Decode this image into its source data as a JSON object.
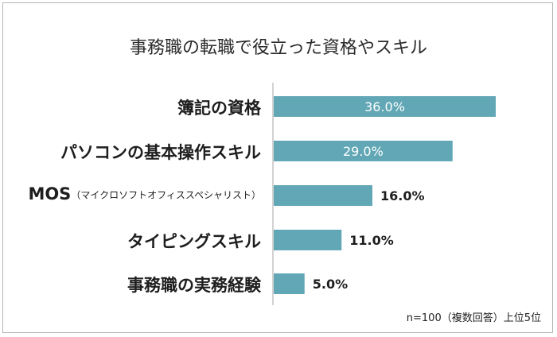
{
  "chart_data": {
    "type": "bar",
    "orientation": "horizontal",
    "title": "事務職の転職で役立った資格やスキル",
    "categories": [
      {
        "main": "簿記の資格",
        "sub": ""
      },
      {
        "main": "パソコンの基本操作スキル",
        "sub": ""
      },
      {
        "main": "MOS",
        "sub": "（マイクロソフトオフィススペシャリスト）"
      },
      {
        "main": "タイピングスキル",
        "sub": ""
      },
      {
        "main": "事務職の実務経験",
        "sub": ""
      }
    ],
    "values": [
      36.0,
      29.0,
      16.0,
      11.0,
      5.0
    ],
    "value_labels": [
      "36.0%",
      "29.0%",
      "16.0%",
      "11.0%",
      "5.0%"
    ],
    "xlim": [
      0,
      100
    ],
    "bar_color": "#62a7b5",
    "grid": false,
    "note": "n=100（複数回答）上位5位"
  }
}
